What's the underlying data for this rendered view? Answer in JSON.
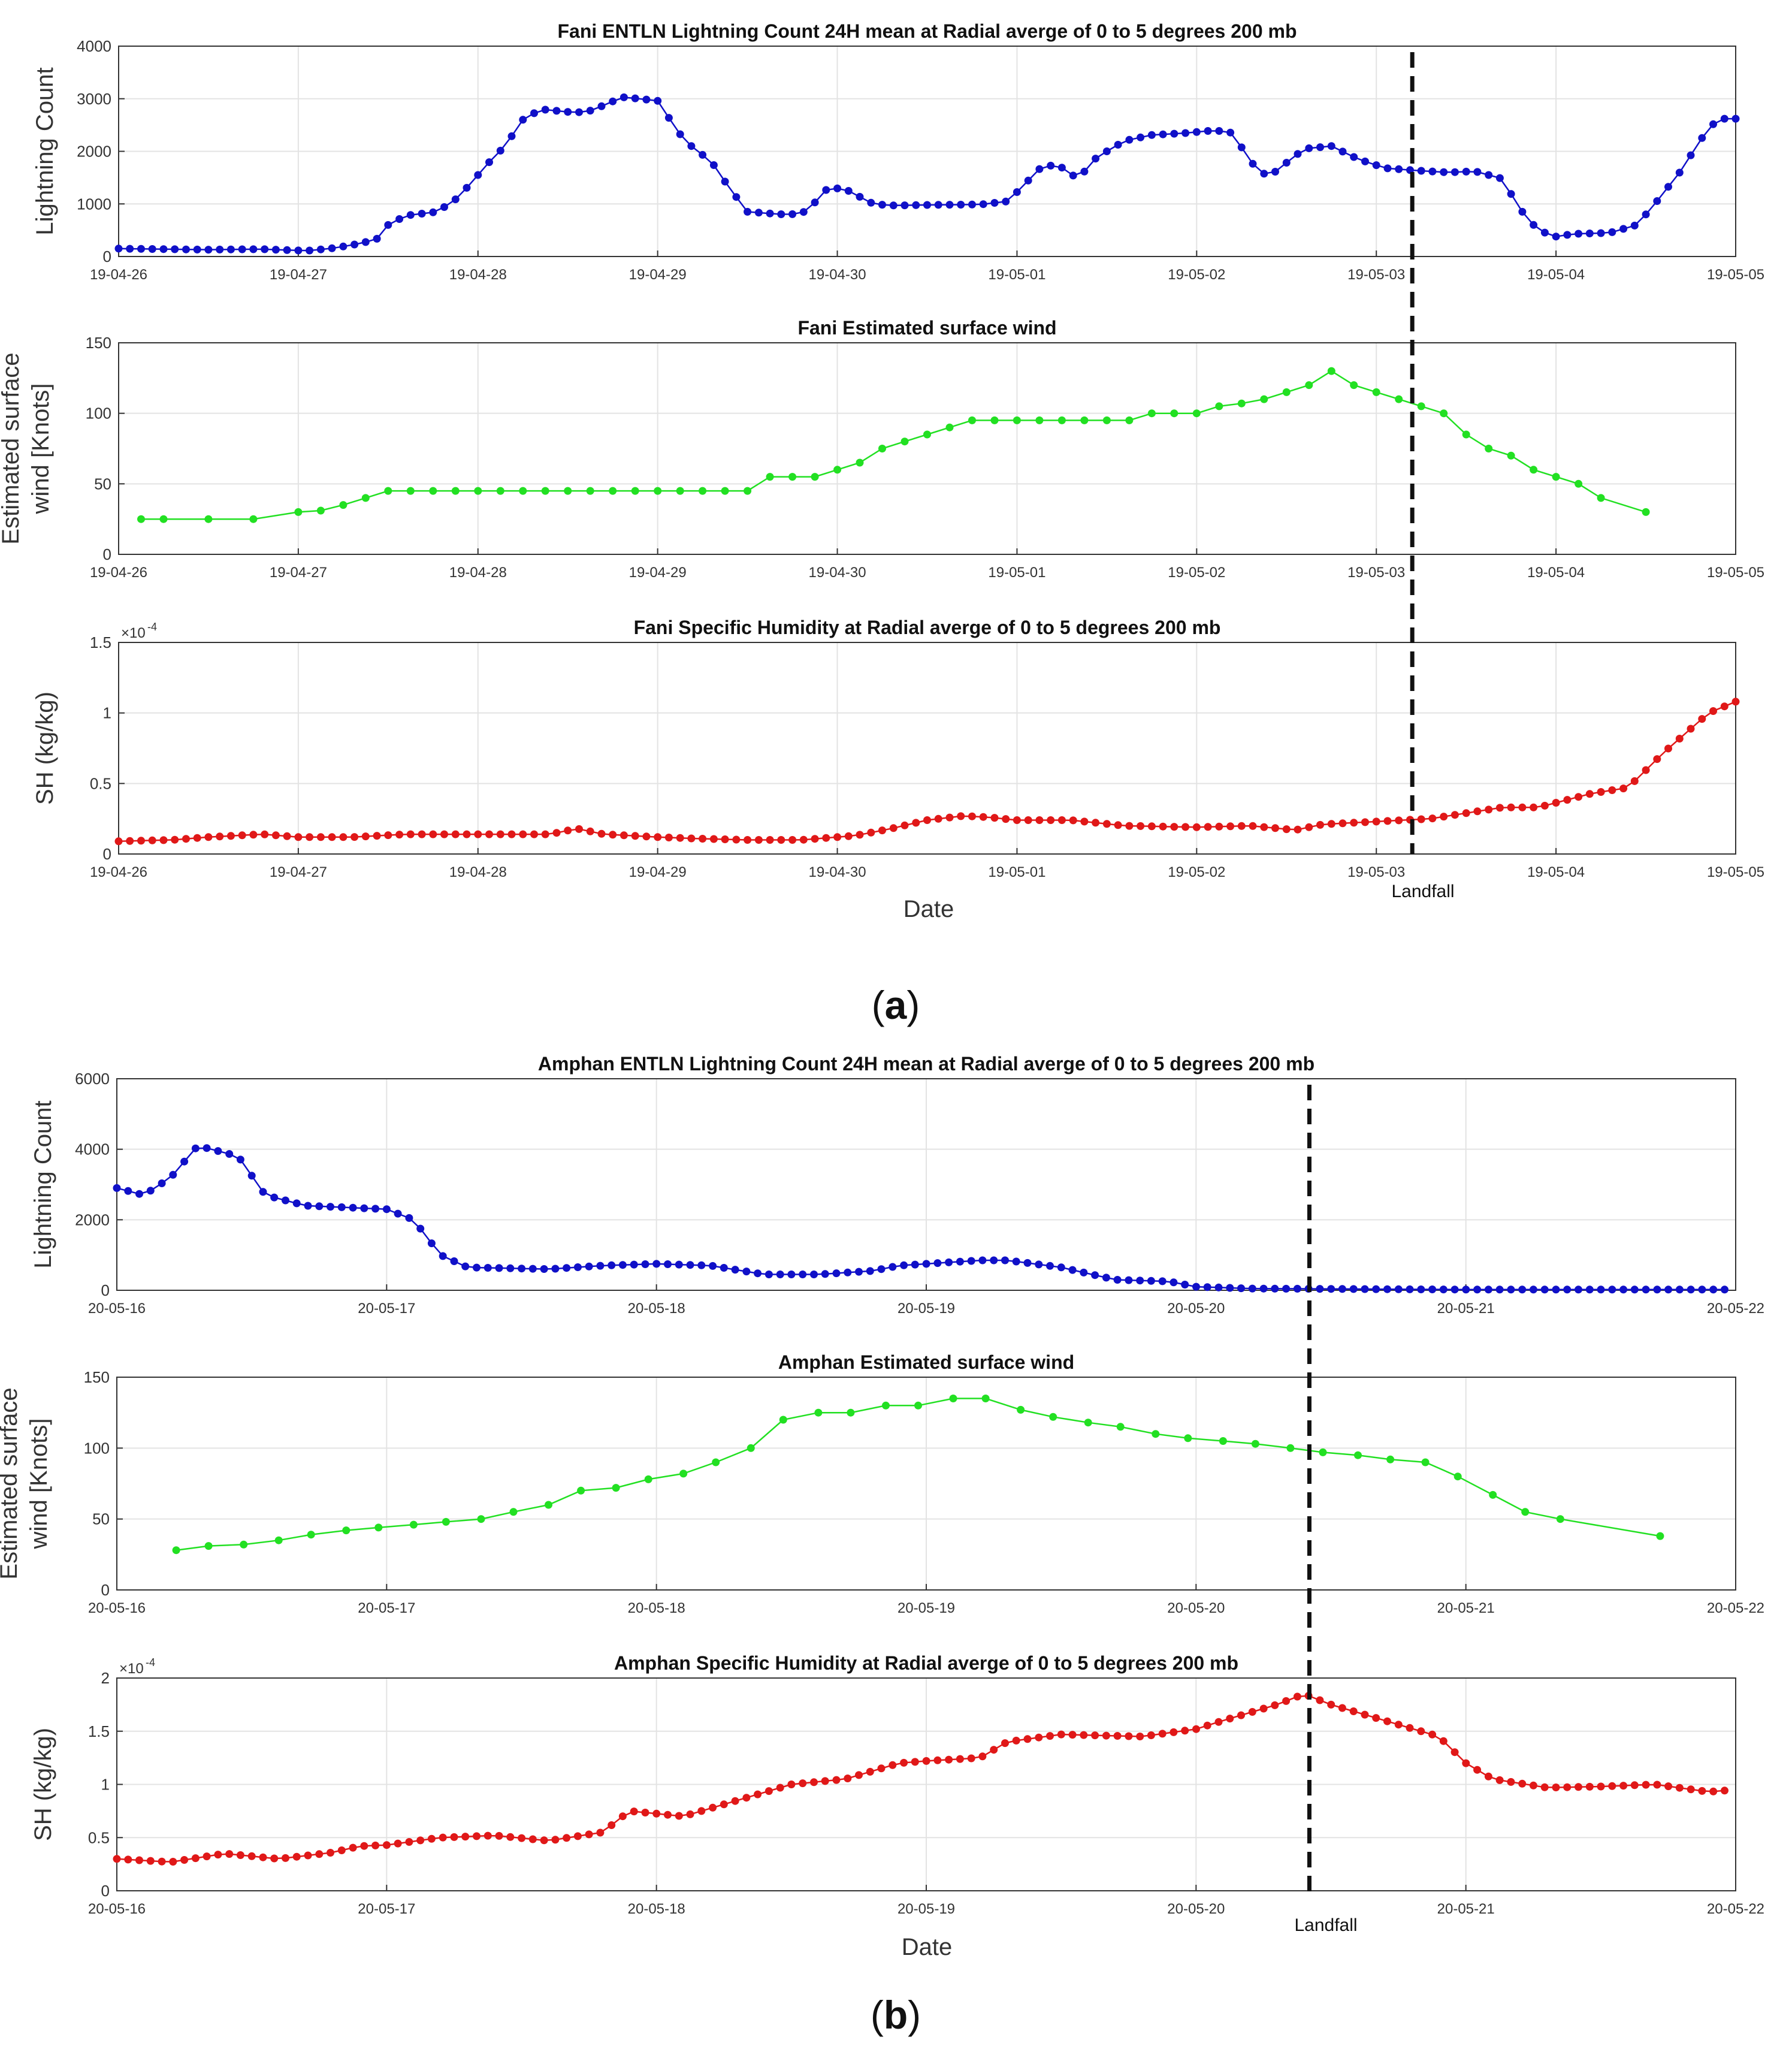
{
  "figure": {
    "panel_a_label_open": "(",
    "panel_a_label_letter": "a",
    "panel_a_label_close": ")",
    "panel_b_label_open": "(",
    "panel_b_label_letter": "b",
    "panel_b_label_close": ")",
    "landfall_label": "Landfall",
    "date_label": "Date"
  },
  "colors": {
    "lightning": "#1010c8",
    "wind": "#22e022",
    "humidity": "#e01818",
    "landfall": "#111111",
    "grid": "#e3e3e3",
    "axis": "#333333"
  },
  "chart_data": [
    {
      "id": "fani-lightning",
      "type": "line",
      "title": "Fani ENTLN Lightning Count 24H mean at Radial averge of 0 to 5 degrees 200 mb",
      "xlabel": "",
      "ylabel": "Lightning Count",
      "xlim": [
        0,
        9
      ],
      "ylim": [
        0,
        4000
      ],
      "yticks": [
        0,
        1000,
        2000,
        3000,
        4000
      ],
      "ytick_labels": [
        "0",
        "1000",
        "2000",
        "3000",
        "4000"
      ],
      "xtick_labels": [
        "19-04-26",
        "19-04-27",
        "19-04-28",
        "19-04-29",
        "19-04-30",
        "19-05-01",
        "19-05-02",
        "19-05-03",
        "19-05-04",
        "19-05-05"
      ],
      "landfall_day": 7.2,
      "grid": true,
      "series": [
        {
          "name": "Lightning Count",
          "color_key": "lightning",
          "marker_every": 0.0625,
          "anchors": [
            [
              0,
              150
            ],
            [
              0.5,
              130
            ],
            [
              0.8,
              140
            ],
            [
              0.95,
              120
            ],
            [
              1.05,
              110
            ],
            [
              1.2,
              160
            ],
            [
              1.35,
              250
            ],
            [
              1.45,
              350
            ],
            [
              1.5,
              600
            ],
            [
              1.6,
              780
            ],
            [
              1.75,
              840
            ],
            [
              1.85,
              1000
            ],
            [
              1.95,
              1350
            ],
            [
              2.05,
              1750
            ],
            [
              2.15,
              2100
            ],
            [
              2.25,
              2600
            ],
            [
              2.35,
              2800
            ],
            [
              2.5,
              2750
            ],
            [
              2.6,
              2740
            ],
            [
              2.72,
              2900
            ],
            [
              2.8,
              3030
            ],
            [
              2.9,
              3000
            ],
            [
              3.0,
              2960
            ],
            [
              3.05,
              2700
            ],
            [
              3.15,
              2200
            ],
            [
              3.3,
              1800
            ],
            [
              3.4,
              1300
            ],
            [
              3.5,
              850
            ],
            [
              3.7,
              800
            ],
            [
              3.8,
              810
            ],
            [
              3.9,
              1100
            ],
            [
              3.95,
              1320
            ],
            [
              4.05,
              1270
            ],
            [
              4.2,
              1000
            ],
            [
              4.3,
              970
            ],
            [
              4.5,
              980
            ],
            [
              4.8,
              990
            ],
            [
              4.95,
              1050
            ],
            [
              5.05,
              1400
            ],
            [
              5.15,
              1750
            ],
            [
              5.25,
              1690
            ],
            [
              5.35,
              1450
            ],
            [
              5.4,
              1780
            ],
            [
              5.5,
              2000
            ],
            [
              5.6,
              2200
            ],
            [
              5.75,
              2310
            ],
            [
              5.95,
              2350
            ],
            [
              6.1,
              2400
            ],
            [
              6.2,
              2350
            ],
            [
              6.3,
              1800
            ],
            [
              6.4,
              1500
            ],
            [
              6.45,
              1650
            ],
            [
              6.6,
              2050
            ],
            [
              6.75,
              2100
            ],
            [
              6.9,
              1850
            ],
            [
              7.05,
              1680
            ],
            [
              7.2,
              1640
            ],
            [
              7.4,
              1600
            ],
            [
              7.55,
              1620
            ],
            [
              7.7,
              1480
            ],
            [
              7.8,
              900
            ],
            [
              7.9,
              500
            ],
            [
              8.0,
              380
            ],
            [
              8.1,
              430
            ],
            [
              8.3,
              450
            ],
            [
              8.45,
              600
            ],
            [
              8.55,
              1000
            ],
            [
              8.7,
              1650
            ],
            [
              8.8,
              2200
            ],
            [
              8.9,
              2620
            ],
            [
              9.0,
              2620
            ]
          ]
        }
      ]
    }
  ]
}
